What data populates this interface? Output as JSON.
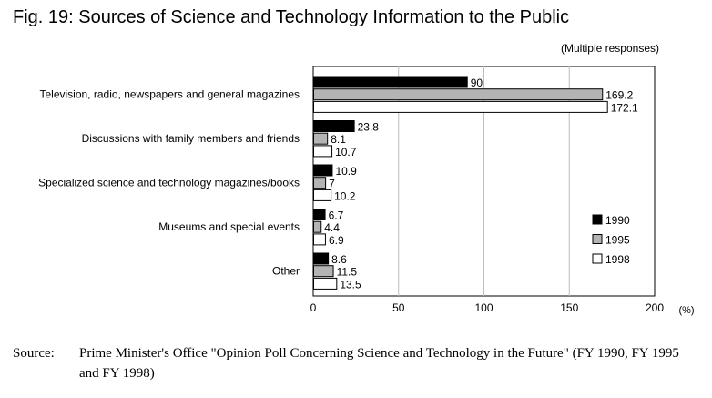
{
  "page": {
    "title": "Fig. 19: Sources of Science and Technology Information to the Public",
    "note": "(Multiple responses)",
    "source_label": "Source:",
    "source_text": "Prime Minister's Office \"Opinion Poll Concerning Science and Technology in the Future\" (FY 1990, FY 1995 and FY 1998)"
  },
  "chart_data": {
    "type": "bar",
    "orientation": "horizontal",
    "title": "Fig. 19: Sources of Science and Technology Information to the Public",
    "xlabel": "",
    "ylabel": "",
    "unit": "(%)",
    "xlim": [
      0,
      200
    ],
    "xticks": [
      0,
      50,
      100,
      150,
      200
    ],
    "grid": true,
    "legend_position": "right",
    "categories": [
      "Television, radio, newspapers and general magazines",
      "Discussions with family members and friends",
      "Specialized science and technology magazines/books",
      "Museums and special events",
      "Other"
    ],
    "series": [
      {
        "name": "1990",
        "color": "#000000",
        "values": [
          90,
          23.8,
          10.9,
          6.7,
          8.6
        ]
      },
      {
        "name": "1995",
        "color": "#b4b4b4",
        "values": [
          169.2,
          8.1,
          7,
          4.4,
          11.5
        ]
      },
      {
        "name": "1998",
        "color": "#ffffff",
        "values": [
          172.1,
          10.7,
          10.2,
          6.9,
          13.5
        ]
      }
    ]
  }
}
